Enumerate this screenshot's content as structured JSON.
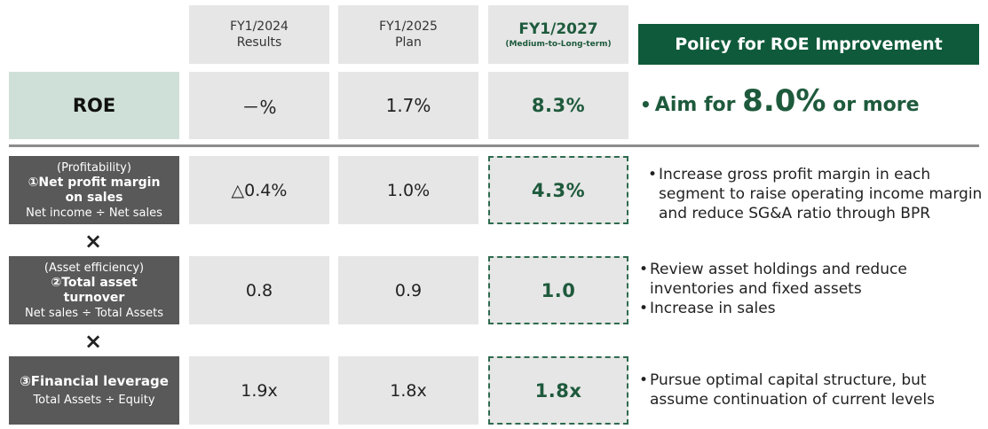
{
  "header": {
    "col1_line1": "FY1/2024",
    "col1_line2": "Results",
    "col2_line1": "FY1/2025",
    "col2_line2": "Plan",
    "col3_line1": "FY1/2027",
    "col3_line2": "(Medium-to-Long-term)",
    "policy_title": "Policy for ROE Improvement"
  },
  "roe": {
    "label": "ROE",
    "fy2024": "－%",
    "fy2025": "1.7%",
    "fy2027": "8.3%",
    "policy_bullet": "•",
    "policy_prefix": "Aim for ",
    "policy_value": "8.0%",
    "policy_suffix": " or more"
  },
  "rows": [
    {
      "sub": "(Profitability)",
      "main1": "①Net profit margin",
      "main2": "on sales",
      "formula": "Net income ÷ Net sales",
      "fy2024": "△0.4%",
      "fy2025": "1.0%",
      "fy2027": "4.3%",
      "policy": [
        "Increase gross profit margin in each segment to raise operating income margin and reduce SG&A ratio through BPR"
      ]
    },
    {
      "sub": "(Asset efficiency)",
      "main1": "②Total asset",
      "main2": "turnover",
      "formula": "Net sales ÷ Total Assets",
      "fy2024": "0.8",
      "fy2025": "0.9",
      "fy2027": "1.0",
      "policy": [
        "Review asset holdings and reduce inventories and fixed assets",
        "Increase in sales"
      ]
    },
    {
      "sub": "",
      "main1": "③Financial leverage",
      "main2": "",
      "formula": "Total Assets ÷ Equity",
      "fy2024": "1.9x",
      "fy2025": "1.8x",
      "fy2027": "1.8x",
      "policy": [
        "Pursue optimal capital structure, but assume continuation of current levels"
      ]
    }
  ],
  "operator": "×",
  "bullet": "•",
  "colors": {
    "accent_green": "#1e5a3c",
    "header_green": "#0f5a3a",
    "roe_label_bg": "#cfe0d8",
    "dark_label_bg": "#595959",
    "cell_gray": "#e6e6e6"
  }
}
